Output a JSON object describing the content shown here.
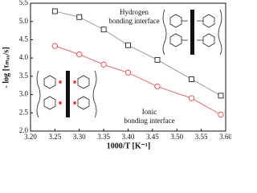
{
  "chart_data": {
    "type": "scatter",
    "x_label": "1000/T [K⁻¹]",
    "y_label": "- log [τₘₐₓ/s]",
    "annotations": [
      "Hydrogen",
      "bonding interface",
      "Ionic",
      "bonding interface"
    ],
    "series": [
      {
        "name": "Hydrogen bonding interface",
        "color": "#222222",
        "line_color": "#888888",
        "marker": "square",
        "x": [
          3.25,
          3.3,
          3.35,
          3.4,
          3.46,
          3.53,
          3.59
        ],
        "values": [
          5.28,
          5.12,
          4.78,
          4.35,
          3.95,
          3.42,
          2.97
        ]
      },
      {
        "name": "Ionic bonding interface",
        "color": "#e8474a",
        "line_color": "#e8474a",
        "marker": "circle",
        "x": [
          3.25,
          3.3,
          3.35,
          3.4,
          3.46,
          3.53,
          3.59
        ],
        "values": [
          4.33,
          4.1,
          3.82,
          3.6,
          3.22,
          2.9,
          2.45
        ]
      }
    ],
    "xlim": [
      3.2,
      3.6
    ],
    "xticks": [
      {
        "value": 3.2,
        "label": "3.20"
      },
      3.25,
      {
        "value": 3.3,
        "label": "3.30"
      },
      3.35,
      {
        "value": 3.4,
        "label": "3.40"
      },
      3.45,
      {
        "value": 3.5,
        "label": "3.50"
      },
      3.55,
      {
        "value": 3.6,
        "label": "3.60"
      }
    ],
    "ylim": [
      2.0,
      5.5
    ],
    "yticks": [
      {
        "value": 2,
        "label": "2.0"
      },
      2.5,
      {
        "value": 3,
        "label": "3.0"
      },
      3.5,
      {
        "value": 4,
        "label": "4.0"
      },
      4.5,
      {
        "value": 5,
        "label": "5.0"
      },
      5.5
    ],
    "grid": false
  }
}
